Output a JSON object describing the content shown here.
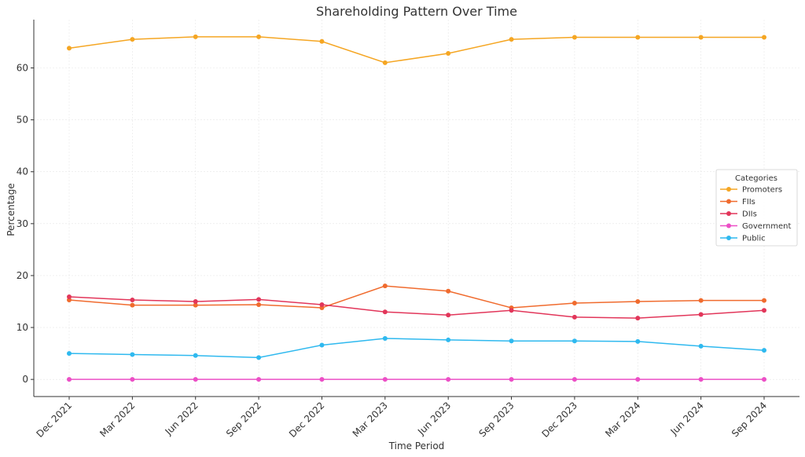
{
  "chart_data": {
    "type": "line",
    "title": "Shareholding Pattern Over Time",
    "xlabel": "Time Period",
    "ylabel": "Percentage",
    "categories": [
      "Dec 2021",
      "Mar 2022",
      "Jun 2022",
      "Sep 2022",
      "Dec 2022",
      "Mar 2023",
      "Jun 2023",
      "Sep 2023",
      "Dec 2023",
      "Mar 2024",
      "Jun 2024",
      "Sep 2024"
    ],
    "ylim": [
      -3.3,
      69.3
    ],
    "yticks": [
      0,
      10,
      20,
      30,
      40,
      50,
      60
    ],
    "grid": true,
    "legend": {
      "title": "Categories",
      "placement": "center-right"
    },
    "series": [
      {
        "name": "Promoters",
        "color": "#f5a623",
        "values": [
          63.8,
          65.5,
          66.0,
          66.0,
          65.1,
          61.0,
          62.8,
          65.5,
          65.9,
          65.9,
          65.9,
          65.9
        ]
      },
      {
        "name": "FIIs",
        "color": "#f06b2e",
        "values": [
          15.3,
          14.3,
          14.3,
          14.4,
          13.8,
          18.0,
          17.0,
          13.8,
          14.7,
          15.0,
          15.2,
          15.2
        ]
      },
      {
        "name": "DIIs",
        "color": "#e2365a",
        "values": [
          15.9,
          15.3,
          15.0,
          15.4,
          14.4,
          13.0,
          12.4,
          13.3,
          12.0,
          11.8,
          12.5,
          13.3
        ]
      },
      {
        "name": "Government",
        "color": "#ec4fc6",
        "values": [
          0.0,
          0.0,
          0.0,
          0.0,
          0.0,
          0.0,
          0.0,
          0.0,
          0.0,
          0.0,
          0.0,
          0.0
        ]
      },
      {
        "name": "Public",
        "color": "#2fb9ef",
        "values": [
          5.0,
          4.8,
          4.6,
          4.2,
          6.6,
          7.9,
          7.6,
          7.4,
          7.4,
          7.3,
          6.4,
          5.6
        ]
      }
    ]
  }
}
